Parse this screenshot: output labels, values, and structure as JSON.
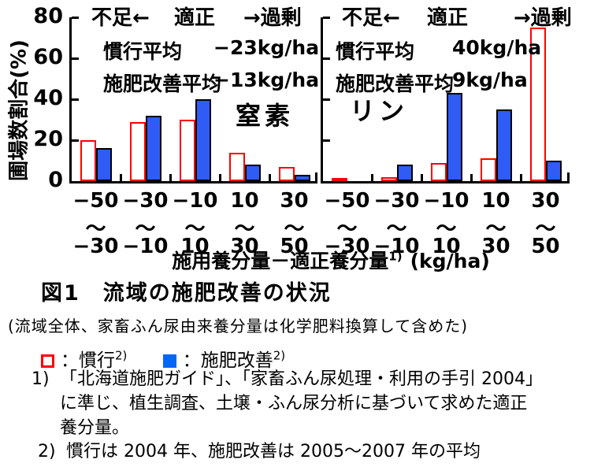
{
  "colors": {
    "red": "#FF0000",
    "blue_bar": "#2E5CF5",
    "blue_legend": "#0066F5",
    "axis": "#000000"
  },
  "chart_data": {
    "type": "bar",
    "ylabel": "圃場数割合(%)",
    "xlabel": "施用養分量－適正養分量",
    "xlabel_sup": "1)",
    "xlabel_unit": "(kg/ha)",
    "ylim": [
      0,
      80
    ],
    "yticks": [
      "0",
      "20",
      "40",
      "60",
      "80"
    ],
    "x_bin_top": [
      "−50",
      "−30",
      "−10",
      "10",
      "30"
    ],
    "x_bin_tilde": "～",
    "x_bin_bottom": [
      "−30",
      "−10",
      "10",
      "30",
      "50"
    ],
    "grid": false,
    "legend_position": "below-figure",
    "panels": [
      {
        "name": "窒素",
        "zone_labels": [
          "不足←",
          "適正",
          "→過剰"
        ],
        "stats": [
          {
            "label": "慣行平均",
            "value": "−23kg/ha"
          },
          {
            "label": "施肥改善平均",
            "value": "−13kg/ha"
          }
        ],
        "series": [
          {
            "name": "慣行",
            "values": [
              20,
              29,
              30,
              14,
              7
            ]
          },
          {
            "name": "施肥改善",
            "values": [
              16,
              32,
              40,
              8,
              3
            ]
          }
        ]
      },
      {
        "name": "リン",
        "zone_labels": [
          "不足←",
          "適正",
          "→過剰"
        ],
        "stats": [
          {
            "label": "慣行平均",
            "value": "40kg/ha"
          },
          {
            "label": "施肥改善平均",
            "value": "9kg/ha"
          }
        ],
        "series": [
          {
            "name": "慣行",
            "values": [
              1,
              2,
              9,
              11,
              75
            ]
          },
          {
            "name": "施肥改善",
            "values": [
              0,
              8,
              43,
              35,
              10
            ]
          }
        ]
      }
    ]
  },
  "caption": "図1　流域の施肥改善の状況",
  "note": "(流域全体、家畜ふん尿由来養分量は化学肥料換算して含めた)",
  "legend": {
    "items": [
      {
        "marker": "open-red-square",
        "label": "：慣行",
        "sup": "2)"
      },
      {
        "marker": "filled-blue-square",
        "label": "：施肥改善",
        "sup": "2)"
      }
    ]
  },
  "footnotes": [
    {
      "marker": "1)",
      "text": "「北海道施肥ガイド」、「家畜ふん尿処理・利用の手引 2004」に準じ、植生調査、土壌・ふん尿分析に基づいて求めた適正養分量。"
    },
    {
      "marker": "2)",
      "text": "慣行は 2004 年、施肥改善は 2005～2007 年の平均"
    }
  ]
}
